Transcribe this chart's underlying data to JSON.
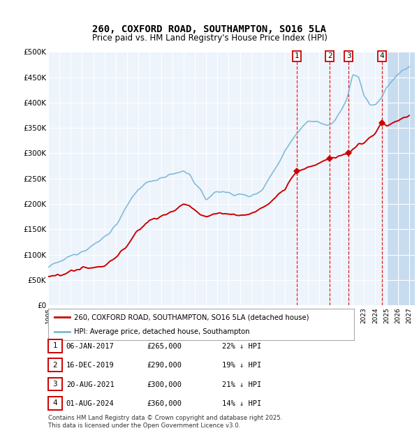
{
  "title": "260, COXFORD ROAD, SOUTHAMPTON, SO16 5LA",
  "subtitle": "Price paid vs. HM Land Registry's House Price Index (HPI)",
  "ylim": [
    0,
    500000
  ],
  "yticks": [
    0,
    50000,
    100000,
    150000,
    200000,
    250000,
    300000,
    350000,
    400000,
    450000,
    500000
  ],
  "xlim_start": 1995.0,
  "xlim_end": 2027.5,
  "legend_red": "260, COXFORD ROAD, SOUTHAMPTON, SO16 5LA (detached house)",
  "legend_blue": "HPI: Average price, detached house, Southampton",
  "footer": "Contains HM Land Registry data © Crown copyright and database right 2025.\nThis data is licensed under the Open Government Licence v3.0.",
  "sales": [
    {
      "num": 1,
      "date": "06-JAN-2017",
      "year": 2017.02,
      "price": 265000,
      "pct": "22% ↓ HPI"
    },
    {
      "num": 2,
      "date": "16-DEC-2019",
      "year": 2019.96,
      "price": 290000,
      "pct": "19% ↓ HPI"
    },
    {
      "num": 3,
      "date": "20-AUG-2021",
      "year": 2021.64,
      "price": 300000,
      "pct": "21% ↓ HPI"
    },
    {
      "num": 4,
      "date": "01-AUG-2024",
      "year": 2024.58,
      "price": 360000,
      "pct": "14% ↓ HPI"
    }
  ],
  "background_color": "#ffffff",
  "plot_bg_color": "#eef4fb",
  "hatch_region_start": 2025.0,
  "hatch_color": "#c8dcf0",
  "grid_color": "#ffffff",
  "red_color": "#cc0000",
  "blue_color": "#7ab8d9"
}
